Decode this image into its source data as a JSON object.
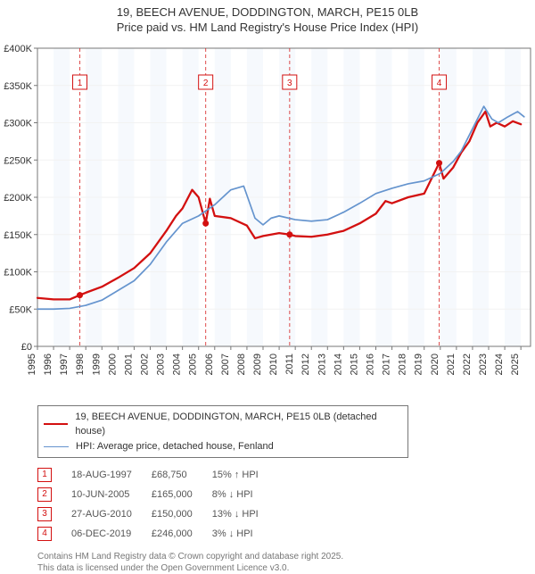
{
  "title_line1": "19, BEECH AVENUE, DODDINGTON, MARCH, PE15 0LB",
  "title_line2": "Price paid vs. HM Land Registry's House Price Index (HPI)",
  "chart": {
    "type": "line",
    "background_color": "#ffffff",
    "plot_bg": "#ffffff",
    "grid_color": "#f2f2f2",
    "axis_color": "#777777",
    "tick_color": "#777777",
    "band_color": "#eef4fb",
    "xlim": [
      1995,
      2025.6
    ],
    "ylim": [
      0,
      400000
    ],
    "y_ticks": [
      0,
      50000,
      100000,
      150000,
      200000,
      250000,
      300000,
      350000,
      400000
    ],
    "y_tick_labels": [
      "£0",
      "£50K",
      "£100K",
      "£150K",
      "£200K",
      "£250K",
      "£300K",
      "£350K",
      "£400K"
    ],
    "x_ticks": [
      1995,
      1996,
      1997,
      1998,
      1999,
      2000,
      2001,
      2002,
      2003,
      2004,
      2005,
      2006,
      2007,
      2008,
      2009,
      2010,
      2011,
      2012,
      2013,
      2014,
      2015,
      2016,
      2017,
      2018,
      2019,
      2020,
      2021,
      2022,
      2023,
      2024,
      2025
    ],
    "series": [
      {
        "name": "price_paid",
        "color": "#d31010",
        "width": 2.3,
        "points": [
          [
            1995.0,
            65000
          ],
          [
            1996.0,
            63000
          ],
          [
            1997.0,
            63000
          ],
          [
            1997.63,
            68750
          ],
          [
            1998.0,
            72000
          ],
          [
            1999.0,
            80000
          ],
          [
            2000.0,
            92000
          ],
          [
            2001.0,
            105000
          ],
          [
            2002.0,
            125000
          ],
          [
            2003.0,
            155000
          ],
          [
            2003.6,
            175000
          ],
          [
            2004.0,
            185000
          ],
          [
            2004.6,
            210000
          ],
          [
            2005.0,
            200000
          ],
          [
            2005.44,
            165000
          ],
          [
            2005.7,
            198000
          ],
          [
            2006.0,
            175000
          ],
          [
            2007.0,
            172000
          ],
          [
            2008.0,
            162000
          ],
          [
            2008.5,
            145000
          ],
          [
            2009.0,
            148000
          ],
          [
            2009.5,
            150000
          ],
          [
            2010.0,
            152000
          ],
          [
            2010.65,
            150000
          ],
          [
            2011.0,
            148000
          ],
          [
            2012.0,
            147000
          ],
          [
            2013.0,
            150000
          ],
          [
            2014.0,
            155000
          ],
          [
            2015.0,
            165000
          ],
          [
            2016.0,
            178000
          ],
          [
            2016.6,
            195000
          ],
          [
            2017.0,
            192000
          ],
          [
            2018.0,
            200000
          ],
          [
            2019.0,
            205000
          ],
          [
            2019.93,
            246000
          ],
          [
            2020.2,
            225000
          ],
          [
            2020.8,
            240000
          ],
          [
            2021.3,
            260000
          ],
          [
            2021.8,
            275000
          ],
          [
            2022.3,
            300000
          ],
          [
            2022.8,
            315000
          ],
          [
            2023.1,
            295000
          ],
          [
            2023.5,
            300000
          ],
          [
            2024.0,
            295000
          ],
          [
            2024.5,
            302000
          ],
          [
            2025.0,
            298000
          ]
        ]
      },
      {
        "name": "hpi",
        "color": "#6594ce",
        "width": 1.7,
        "points": [
          [
            1995.0,
            50000
          ],
          [
            1996.0,
            50000
          ],
          [
            1997.0,
            51000
          ],
          [
            1998.0,
            55000
          ],
          [
            1999.0,
            62000
          ],
          [
            2000.0,
            75000
          ],
          [
            2001.0,
            88000
          ],
          [
            2002.0,
            110000
          ],
          [
            2003.0,
            140000
          ],
          [
            2004.0,
            165000
          ],
          [
            2005.0,
            175000
          ],
          [
            2006.0,
            190000
          ],
          [
            2007.0,
            210000
          ],
          [
            2007.8,
            215000
          ],
          [
            2008.5,
            172000
          ],
          [
            2009.0,
            163000
          ],
          [
            2009.5,
            172000
          ],
          [
            2010.0,
            175000
          ],
          [
            2011.0,
            170000
          ],
          [
            2012.0,
            168000
          ],
          [
            2013.0,
            170000
          ],
          [
            2014.0,
            180000
          ],
          [
            2015.0,
            192000
          ],
          [
            2016.0,
            205000
          ],
          [
            2017.0,
            212000
          ],
          [
            2018.0,
            218000
          ],
          [
            2019.0,
            222000
          ],
          [
            2020.0,
            232000
          ],
          [
            2020.8,
            248000
          ],
          [
            2021.3,
            262000
          ],
          [
            2022.0,
            292000
          ],
          [
            2022.7,
            322000
          ],
          [
            2023.2,
            305000
          ],
          [
            2023.6,
            300000
          ],
          [
            2024.2,
            308000
          ],
          [
            2024.8,
            315000
          ],
          [
            2025.2,
            308000
          ]
        ]
      }
    ],
    "sale_markers": [
      {
        "n": "1",
        "x": 1997.63,
        "y": 68750
      },
      {
        "n": "2",
        "x": 2005.44,
        "y": 165000
      },
      {
        "n": "3",
        "x": 2010.65,
        "y": 150000
      },
      {
        "n": "4",
        "x": 2019.93,
        "y": 246000
      }
    ],
    "marker_dot_color": "#d31010",
    "marker_box_border": "#d31010",
    "marker_box_text": "#d31010",
    "marker_dashed_color": "#d31010"
  },
  "legend": {
    "items": [
      {
        "color": "#d31010",
        "width": 2.5,
        "label": "19, BEECH AVENUE, DODDINGTON, MARCH, PE15 0LB (detached house)"
      },
      {
        "color": "#6594ce",
        "width": 1.7,
        "label": "HPI: Average price, detached house, Fenland"
      }
    ]
  },
  "sales": [
    {
      "n": "1",
      "date": "18-AUG-1997",
      "price": "£68,750",
      "delta": "15% ↑ HPI"
    },
    {
      "n": "2",
      "date": "10-JUN-2005",
      "price": "£165,000",
      "delta": "8% ↓ HPI"
    },
    {
      "n": "3",
      "date": "27-AUG-2010",
      "price": "£150,000",
      "delta": "13% ↓ HPI"
    },
    {
      "n": "4",
      "date": "06-DEC-2019",
      "price": "£246,000",
      "delta": "3% ↓ HPI"
    }
  ],
  "footnote_line1": "Contains HM Land Registry data © Crown copyright and database right 2025.",
  "footnote_line2": "This data is licensed under the Open Government Licence v3.0."
}
